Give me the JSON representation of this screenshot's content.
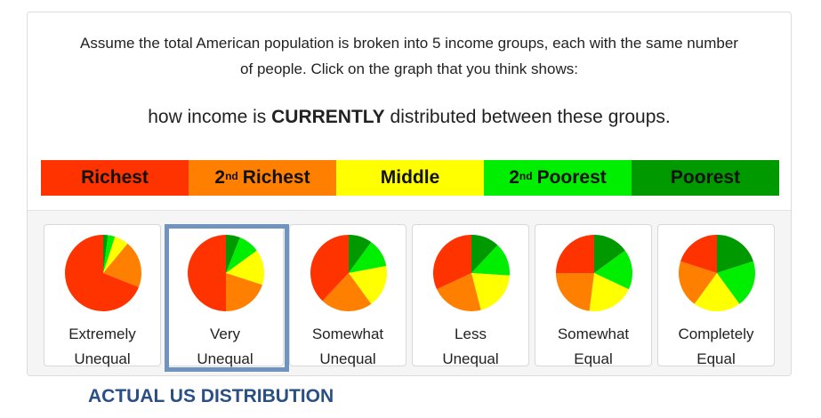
{
  "prompt": {
    "line1": "Assume the total American population is broken into 5 income groups, each with the same number",
    "line2": "of people. Click on the graph that you think shows:"
  },
  "question": {
    "before": "how income is ",
    "emphasis": "CURRENTLY",
    "after": " distributed between these groups."
  },
  "legend": [
    {
      "label": "Richest",
      "sup": "",
      "color": "#ff3300"
    },
    {
      "label": "Richest",
      "sup": "nd",
      "prefix": "2",
      "color": "#ff8000"
    },
    {
      "label": "Middle",
      "sup": "",
      "color": "#ffff00"
    },
    {
      "label": "Poorest",
      "sup": "nd",
      "prefix": "2",
      "color": "#00ee00"
    },
    {
      "label": "Poorest",
      "sup": "",
      "color": "#009900"
    }
  ],
  "options": [
    {
      "line1": "Extremely",
      "line2": "Unequal",
      "shares": [
        69,
        20,
        6,
        3,
        2
      ]
    },
    {
      "line1": "Very",
      "line2": "Unequal",
      "shares": [
        50,
        20,
        15,
        9,
        6
      ]
    },
    {
      "line1": "Somewhat",
      "line2": "Unequal",
      "shares": [
        38,
        22,
        18,
        12,
        10
      ]
    },
    {
      "line1": "Less",
      "line2": "Unequal",
      "shares": [
        32,
        22,
        20,
        14,
        12
      ]
    },
    {
      "line1": "Somewhat",
      "line2": "Equal",
      "shares": [
        25,
        23,
        20,
        17,
        15
      ]
    },
    {
      "line1": "Completely",
      "line2": "Equal",
      "shares": [
        20,
        20,
        20,
        20,
        20
      ]
    }
  ],
  "selected_index": 1,
  "actual_label": "ACTUAL US DISTRIBUTION"
}
